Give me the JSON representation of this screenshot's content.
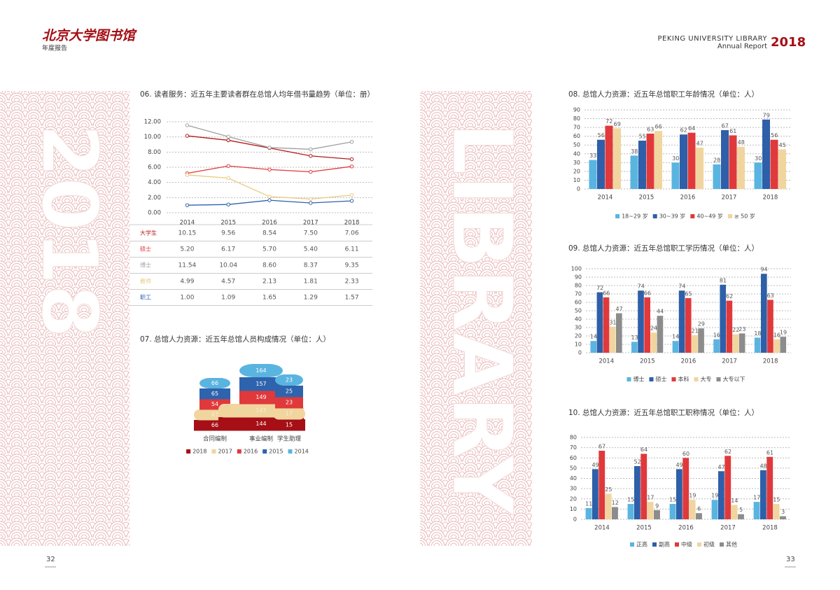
{
  "header": {
    "logo": "北京大学图书馆",
    "subtitle": "年度报告",
    "library": "PEKING UNIVERSITY LIBRARY",
    "report": "Annual Report",
    "year": "2018"
  },
  "decor": {
    "left": "2018",
    "right": "LIBRARY"
  },
  "footer": {
    "left": "32",
    "right": "33"
  },
  "chart_data": [
    {
      "type": "line",
      "title": "06. 读者服务：近五年主要读者群在总馆人均年借书量趋势（单位：册）",
      "categories": [
        "2014",
        "2015",
        "2016",
        "2017",
        "2018"
      ],
      "ylim": [
        0,
        12
      ],
      "yticks": [
        {
          "value": 0,
          "label": "0.00"
        },
        {
          "value": 2,
          "label": "2.00"
        },
        {
          "value": 4,
          "label": "4.00"
        },
        {
          "value": 6,
          "label": "6.00"
        },
        {
          "value": 8,
          "label": "8.00"
        },
        {
          "value": 10,
          "label": "10.00"
        },
        {
          "value": 12,
          "label": "12.00"
        }
      ],
      "grid": true,
      "series": [
        {
          "name": "大学生",
          "color": "#b31b1b",
          "values": [
            10.15,
            9.56,
            8.54,
            7.5,
            7.06
          ],
          "value_labels": [
            "10.15",
            "9.56",
            "8.54",
            "7.50",
            "7.06"
          ]
        },
        {
          "name": "硕士",
          "color": "#e0393b",
          "values": [
            5.2,
            6.17,
            5.7,
            5.4,
            6.11
          ],
          "value_labels": [
            "5.20",
            "6.17",
            "5.70",
            "5.40",
            "6.11"
          ]
        },
        {
          "name": "博士",
          "color": "#a0a0a0",
          "values": [
            11.54,
            10.04,
            8.6,
            8.37,
            9.35
          ],
          "value_labels": [
            "11.54",
            "10.04",
            "8.60",
            "8.37",
            "9.35"
          ]
        },
        {
          "name": "教师",
          "color": "#ecc97e",
          "values": [
            4.99,
            4.57,
            2.13,
            1.81,
            2.33
          ],
          "value_labels": [
            "4.99",
            "4.57",
            "2.13",
            "1.81",
            "2.33"
          ]
        },
        {
          "name": "职工",
          "color": "#2e63ad",
          "values": [
            1.0,
            1.09,
            1.65,
            1.29,
            1.57
          ],
          "value_labels": [
            "1.00",
            "1.09",
            "1.65",
            "1.29",
            "1.57"
          ]
        }
      ]
    },
    {
      "type": "pictorial",
      "title": "07. 总馆人力资源：近五年总馆人员构成情况（单位：人）",
      "categories": [
        "合同编制",
        "事业编制",
        "学生助理"
      ],
      "series": [
        {
          "name": "2018",
          "color": "#a50f15",
          "values": [
            66,
            144,
            15
          ]
        },
        {
          "name": "2017",
          "color": "#f1d59e",
          "values": [
            47,
            147,
            17
          ]
        },
        {
          "name": "2016",
          "color": "#e0393b",
          "values": [
            54,
            149,
            23
          ]
        },
        {
          "name": "2015",
          "color": "#2e63ad",
          "values": [
            65,
            157,
            25
          ]
        },
        {
          "name": "2014",
          "color": "#5ab4e0",
          "values": [
            66,
            164,
            23
          ]
        }
      ]
    },
    {
      "type": "bar",
      "title": "08. 总馆人力资源：近五年总馆职工年龄情况（单位：人）",
      "categories": [
        "2014",
        "2015",
        "2016",
        "2017",
        "2018"
      ],
      "ylim": [
        0,
        90
      ],
      "yticks": [
        0,
        10,
        20,
        30,
        40,
        50,
        60,
        70,
        80,
        90
      ],
      "grid": true,
      "series": [
        {
          "name": "18~29 岁",
          "color": "#5ab4e0",
          "values": [
            33,
            38,
            30,
            28,
            30
          ]
        },
        {
          "name": "30~39 岁",
          "color": "#2e5fa8",
          "values": [
            56,
            55,
            62,
            67,
            79
          ]
        },
        {
          "name": "40~49 岁",
          "color": "#e0393b",
          "values": [
            72,
            63,
            64,
            61,
            56
          ]
        },
        {
          "name": "≥ 50 岁",
          "color": "#f1d59e",
          "values": [
            69,
            66,
            47,
            48,
            45
          ]
        }
      ]
    },
    {
      "type": "bar",
      "title": "09. 总馆人力资源：近五年总馆职工学历情况（单位：人）",
      "categories": [
        "2014",
        "2015",
        "2016",
        "2017",
        "2018"
      ],
      "ylim": [
        0,
        100
      ],
      "yticks": [
        0,
        10,
        20,
        30,
        40,
        50,
        60,
        70,
        80,
        90,
        100
      ],
      "grid": true,
      "series": [
        {
          "name": "博士",
          "color": "#5ab4e0",
          "values": [
            14,
            13,
            14,
            16,
            18
          ]
        },
        {
          "name": "硕士",
          "color": "#2e5fa8",
          "values": [
            72,
            74,
            74,
            81,
            94
          ]
        },
        {
          "name": "本科",
          "color": "#e0393b",
          "values": [
            66,
            66,
            65,
            62,
            63
          ]
        },
        {
          "name": "大专",
          "color": "#f1d59e",
          "values": [
            31,
            24,
            21,
            22,
            16
          ]
        },
        {
          "name": "大专以下",
          "color": "#8c8c8c",
          "values": [
            47,
            44,
            29,
            23,
            19
          ]
        }
      ]
    },
    {
      "type": "bar",
      "title": "10. 总馆人力资源：近五年总馆职工职称情况（单位：人）",
      "categories": [
        "2014",
        "2015",
        "2016",
        "2017",
        "2018"
      ],
      "ylim": [
        0,
        80
      ],
      "yticks": [
        0,
        10,
        20,
        30,
        40,
        50,
        60,
        70,
        80
      ],
      "grid": true,
      "series": [
        {
          "name": "正高",
          "color": "#5ab4e0",
          "values": [
            11,
            15,
            15,
            19,
            17
          ]
        },
        {
          "name": "副高",
          "color": "#2e5fa8",
          "values": [
            49,
            52,
            49,
            47,
            48
          ]
        },
        {
          "name": "中级",
          "color": "#e0393b",
          "values": [
            67,
            64,
            60,
            62,
            61
          ]
        },
        {
          "name": "初级",
          "color": "#f1d59e",
          "values": [
            25,
            17,
            19,
            14,
            15
          ]
        },
        {
          "name": "其他",
          "color": "#8c8c8c",
          "values": [
            12,
            9,
            6,
            5,
            3
          ]
        }
      ]
    }
  ]
}
